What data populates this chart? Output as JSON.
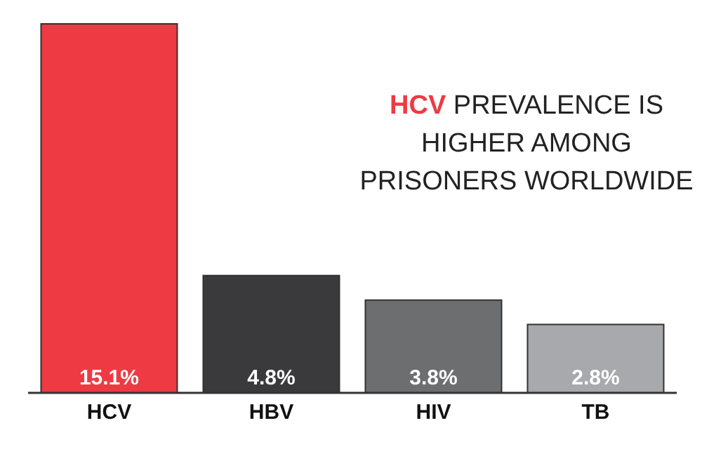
{
  "chart_data": {
    "type": "bar",
    "title": "HCV PREVALENCE IS HIGHER AMONG PRISONERS WORLDWIDE",
    "categories": [
      "HCV",
      "HBV",
      "HIV",
      "TB"
    ],
    "values": [
      15.1,
      4.8,
      3.8,
      2.8
    ],
    "colors": [
      "#ee3a43",
      "#3a3a3c",
      "#6d6e70",
      "#a7a9ac"
    ],
    "value_labels": [
      "15.1%",
      "4.8%",
      "3.8%",
      "2.8%"
    ]
  }
}
